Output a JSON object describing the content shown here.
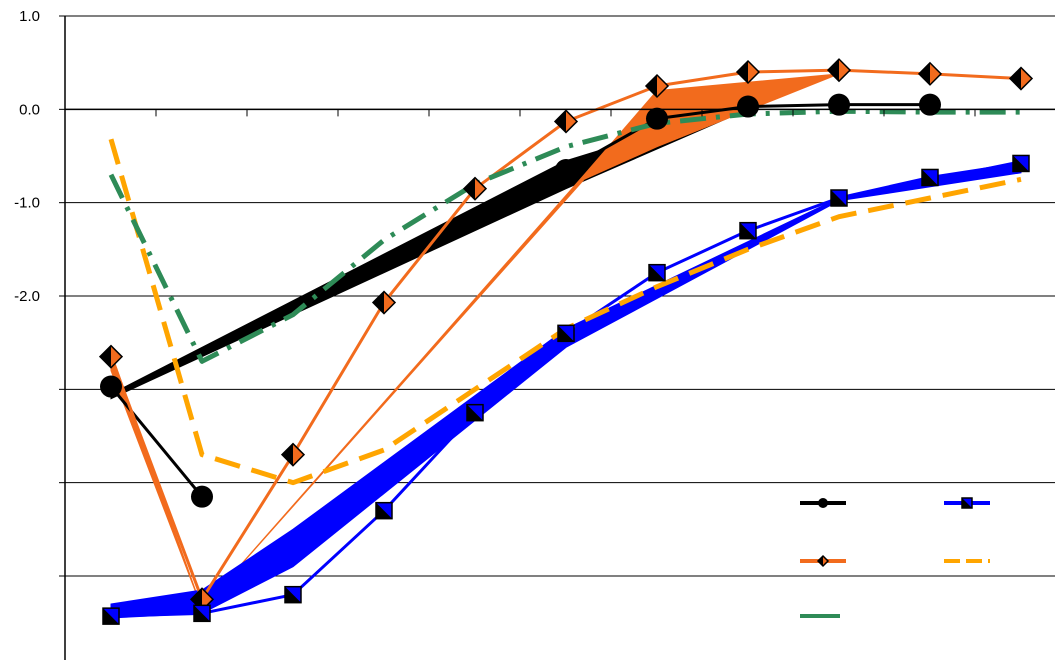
{
  "chart_data": {
    "type": "line",
    "title": "",
    "xlabel": "",
    "ylabel": "",
    "ylim": [
      -5.9,
      1.0
    ],
    "y_tick_labels": [
      "1.0",
      "0.0",
      "-1.0",
      "-2.0"
    ],
    "y_gridlines": [
      1.0,
      0.0,
      -1.0,
      -2.0,
      -3.0,
      -4.0,
      -5.0
    ],
    "x": [
      1,
      2,
      3,
      4,
      5,
      6,
      7,
      8,
      9,
      10,
      11
    ],
    "grid": true,
    "legend": "bottom-right, labels not shown",
    "series": [
      {
        "color": "#000000",
        "marker": "circle",
        "line": "solid",
        "values": [
          -2.97,
          -4.15,
          null,
          null,
          null,
          -0.65,
          -0.1,
          0.03,
          0.05,
          0.05,
          null
        ],
        "band": [
          {
            "x": 1,
            "y_top": -3.05,
            "y_bottom": -3.1
          },
          {
            "x": 6,
            "y_top": -0.55,
            "y_bottom": -0.85
          },
          {
            "x": 8,
            "y_top": 0.05,
            "y_bottom": 0.0
          }
        ]
      },
      {
        "color": "#f26b1d",
        "marker": "half-filled diamond",
        "line": "solid",
        "values": [
          -2.65,
          -5.25,
          -3.7,
          -2.07,
          -0.85,
          -0.13,
          0.25,
          0.4,
          0.42,
          0.38,
          0.33
        ],
        "band": [
          {
            "x": 1,
            "y_top": -2.6,
            "y_bottom": -2.8
          },
          {
            "x": 2,
            "y_top": -5.35,
            "y_bottom": -5.35
          },
          {
            "x": 6.2,
            "y_top": -0.7,
            "y_bottom": -0.75
          },
          {
            "x": 7,
            "y_top": 0.2,
            "y_bottom": -0.4
          },
          {
            "x": 9,
            "y_top": 0.38,
            "y_bottom": 0.38
          }
        ]
      },
      {
        "color": "#0000ff",
        "marker": "half-filled square",
        "line": "solid",
        "values": [
          -5.43,
          -5.4,
          -5.2,
          -4.3,
          -3.25,
          -2.4,
          -1.75,
          -1.3,
          -0.95,
          -0.73,
          -0.58
        ],
        "band": [
          {
            "x": 1,
            "y_top": -5.3,
            "y_bottom": -5.45
          },
          {
            "x": 2,
            "y_top": -5.15,
            "y_bottom": -5.4
          },
          {
            "x": 3,
            "y_top": -4.5,
            "y_bottom": -4.9
          },
          {
            "x": 6,
            "y_top": -2.35,
            "y_bottom": -2.55
          },
          {
            "x": 9,
            "y_top": -0.95,
            "y_bottom": -0.98
          },
          {
            "x": 11,
            "y_top": -0.55,
            "y_bottom": -0.68
          }
        ]
      },
      {
        "color": "#ffa500",
        "marker": "none",
        "line": "dashed",
        "values": [
          -0.32,
          -3.7,
          -4.0,
          -3.65,
          -3.0,
          -2.35,
          -1.9,
          -1.5,
          -1.15,
          -0.95,
          -0.75
        ]
      },
      {
        "color": "#2e8b57",
        "marker": "none",
        "line": "dash-dot",
        "values": [
          -0.7,
          -2.7,
          -2.2,
          -1.4,
          -0.8,
          -0.4,
          -0.15,
          -0.05,
          -0.02,
          -0.03,
          -0.03
        ]
      }
    ]
  }
}
